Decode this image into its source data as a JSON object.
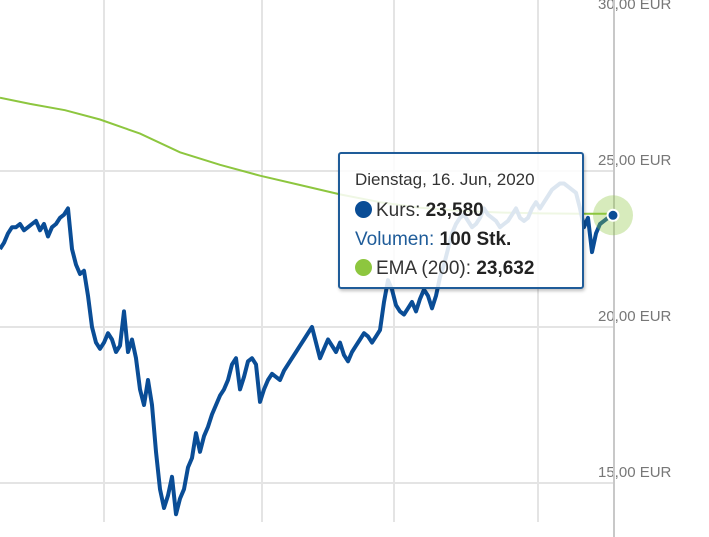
{
  "chart_data": {
    "type": "line",
    "yticks": [
      "15,00 EUR",
      "20,00 EUR",
      "25,00 EUR",
      "30,00 EUR"
    ],
    "ytick_values": [
      15,
      20,
      25,
      30
    ],
    "ylim": [
      13.5,
      30.2
    ],
    "grid": true,
    "series": [
      {
        "color": "#0a4d96",
        "points": [
          [
            0,
            22.5
          ],
          [
            4,
            22.7
          ],
          [
            8,
            23.0
          ],
          [
            12,
            23.2
          ],
          [
            16,
            23.2
          ],
          [
            20,
            23.3
          ],
          [
            24,
            23.1
          ],
          [
            28,
            23.2
          ],
          [
            32,
            23.3
          ],
          [
            36,
            23.4
          ],
          [
            40,
            23.1
          ],
          [
            44,
            23.3
          ],
          [
            48,
            22.9
          ],
          [
            52,
            23.2
          ],
          [
            56,
            23.3
          ],
          [
            60,
            23.5
          ],
          [
            64,
            23.6
          ],
          [
            68,
            23.8
          ],
          [
            72,
            22.5
          ],
          [
            76,
            22.0
          ],
          [
            80,
            21.7
          ],
          [
            84,
            21.8
          ],
          [
            88,
            21.0
          ],
          [
            92,
            20.0
          ],
          [
            96,
            19.5
          ],
          [
            100,
            19.3
          ],
          [
            104,
            19.5
          ],
          [
            108,
            19.8
          ],
          [
            112,
            19.6
          ],
          [
            116,
            19.2
          ],
          [
            120,
            19.4
          ],
          [
            124,
            20.5
          ],
          [
            128,
            19.2
          ],
          [
            132,
            19.6
          ],
          [
            136,
            19.0
          ],
          [
            140,
            18.0
          ],
          [
            144,
            17.5
          ],
          [
            148,
            18.3
          ],
          [
            152,
            17.5
          ],
          [
            156,
            16.0
          ],
          [
            160,
            14.8
          ],
          [
            164,
            14.2
          ],
          [
            168,
            14.6
          ],
          [
            172,
            15.2
          ],
          [
            176,
            14.0
          ],
          [
            180,
            14.5
          ],
          [
            184,
            14.8
          ],
          [
            188,
            15.5
          ],
          [
            192,
            15.8
          ],
          [
            196,
            16.6
          ],
          [
            200,
            16.0
          ],
          [
            204,
            16.5
          ],
          [
            208,
            16.8
          ],
          [
            212,
            17.2
          ],
          [
            216,
            17.5
          ],
          [
            220,
            17.8
          ],
          [
            224,
            18.0
          ],
          [
            228,
            18.3
          ],
          [
            232,
            18.8
          ],
          [
            236,
            19.0
          ],
          [
            240,
            18.0
          ],
          [
            244,
            18.4
          ],
          [
            248,
            18.9
          ],
          [
            252,
            19.0
          ],
          [
            256,
            18.8
          ],
          [
            260,
            17.6
          ],
          [
            264,
            18.0
          ],
          [
            268,
            18.3
          ],
          [
            272,
            18.5
          ],
          [
            276,
            18.4
          ],
          [
            280,
            18.3
          ],
          [
            284,
            18.6
          ],
          [
            288,
            18.8
          ],
          [
            292,
            19.0
          ],
          [
            296,
            19.2
          ],
          [
            300,
            19.4
          ],
          [
            304,
            19.6
          ],
          [
            308,
            19.8
          ],
          [
            312,
            20.0
          ],
          [
            316,
            19.5
          ],
          [
            320,
            19.0
          ],
          [
            324,
            19.3
          ],
          [
            328,
            19.6
          ],
          [
            332,
            19.4
          ],
          [
            336,
            19.2
          ],
          [
            340,
            19.5
          ],
          [
            344,
            19.1
          ],
          [
            348,
            18.9
          ],
          [
            352,
            19.2
          ],
          [
            356,
            19.4
          ],
          [
            360,
            19.6
          ],
          [
            364,
            19.8
          ],
          [
            368,
            19.7
          ],
          [
            372,
            19.5
          ],
          [
            376,
            19.7
          ],
          [
            380,
            19.9
          ],
          [
            384,
            20.8
          ],
          [
            388,
            21.5
          ],
          [
            392,
            21.2
          ],
          [
            396,
            20.7
          ],
          [
            400,
            20.5
          ],
          [
            404,
            20.4
          ],
          [
            408,
            20.6
          ],
          [
            412,
            20.8
          ],
          [
            416,
            20.5
          ],
          [
            420,
            20.9
          ],
          [
            424,
            21.2
          ],
          [
            428,
            21.0
          ],
          [
            432,
            20.6
          ],
          [
            436,
            21.0
          ],
          [
            440,
            21.6
          ],
          [
            444,
            22.0
          ],
          [
            448,
            22.5
          ],
          [
            452,
            23.0
          ],
          [
            456,
            23.3
          ],
          [
            460,
            23.5
          ],
          [
            464,
            23.6
          ],
          [
            468,
            23.4
          ],
          [
            472,
            23.2
          ],
          [
            476,
            23.3
          ],
          [
            480,
            23.5
          ],
          [
            484,
            23.8
          ],
          [
            488,
            23.6
          ],
          [
            492,
            23.5
          ],
          [
            496,
            23.4
          ],
          [
            500,
            23.2
          ],
          [
            504,
            23.3
          ],
          [
            508,
            23.4
          ],
          [
            512,
            23.6
          ],
          [
            516,
            23.8
          ],
          [
            520,
            23.5
          ],
          [
            524,
            23.4
          ],
          [
            528,
            23.5
          ],
          [
            532,
            23.8
          ],
          [
            536,
            24.0
          ],
          [
            540,
            23.8
          ],
          [
            544,
            24.0
          ],
          [
            548,
            24.2
          ],
          [
            552,
            24.4
          ],
          [
            556,
            24.5
          ],
          [
            560,
            24.6
          ],
          [
            564,
            24.6
          ],
          [
            568,
            24.5
          ],
          [
            572,
            24.4
          ],
          [
            576,
            24.3
          ],
          [
            580,
            23.8
          ],
          [
            584,
            23.2
          ],
          [
            588,
            23.5
          ],
          [
            592,
            22.4
          ],
          [
            596,
            23.0
          ],
          [
            600,
            23.3
          ],
          [
            604,
            23.4
          ],
          [
            608,
            23.5
          ],
          [
            613,
            23.58
          ]
        ]
      },
      {
        "color": "#8dc63f",
        "points": [
          [
            0,
            27.35
          ],
          [
            30,
            27.15
          ],
          [
            65,
            26.95
          ],
          [
            100,
            26.65
          ],
          [
            140,
            26.2
          ],
          [
            180,
            25.6
          ],
          [
            220,
            25.2
          ],
          [
            260,
            24.85
          ],
          [
            300,
            24.55
          ],
          [
            340,
            24.25
          ],
          [
            380,
            24.0
          ],
          [
            420,
            23.82
          ],
          [
            460,
            23.72
          ],
          [
            500,
            23.67
          ],
          [
            540,
            23.64
          ],
          [
            580,
            23.63
          ],
          [
            613,
            23.632
          ]
        ]
      }
    ]
  },
  "tooltip": {
    "date": "Dienstag, 16. Jun, 2020",
    "kurs_label": "Kurs:",
    "kurs_value": "23,580",
    "volumen_label": "Volumen:",
    "volumen_value": "100 Stk.",
    "ema_label": "EMA (200):",
    "ema_value": "23,632",
    "kurs_color": "#0a4d96",
    "ema_color": "#8dc63f"
  }
}
